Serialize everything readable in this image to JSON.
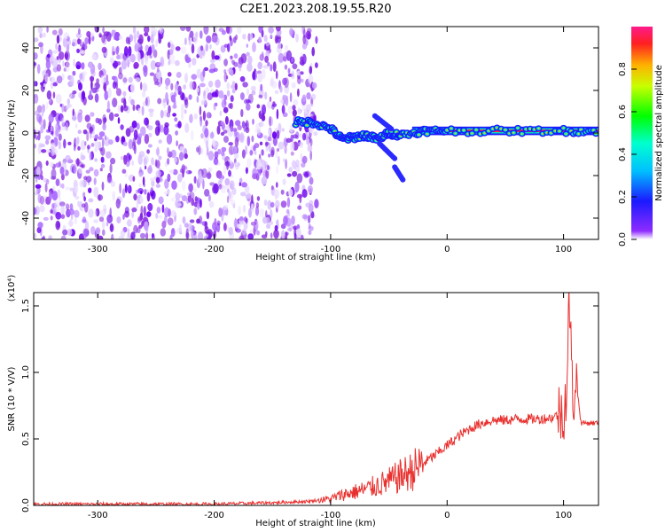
{
  "title": "C2E1.2023.208.19.55.R20",
  "colors": {
    "snr_line": "#e8312f",
    "background": "#ffffff",
    "axes": "#000000",
    "spectrogram_noise": "#7a1fe0"
  },
  "chart_data": [
    {
      "type": "heatmap",
      "xlabel": "Height of straight line (km)",
      "ylabel": "Frequency (Hz)",
      "xlim": [
        -355,
        130
      ],
      "ylim": [
        -50,
        50
      ],
      "xticks": [
        -300,
        -200,
        -100,
        0,
        100
      ],
      "yticks": [
        -40,
        -20,
        0,
        20,
        40
      ],
      "colorbar": {
        "label": "Normalized spectral amplitude",
        "range": [
          0,
          1
        ],
        "ticks": [
          "0.0",
          "0.2",
          "0.4",
          "0.6",
          "0.8"
        ]
      },
      "signal_track": [
        {
          "x": -130,
          "y": 5
        },
        {
          "x": -115,
          "y": 5
        },
        {
          "x": -100,
          "y": 2
        },
        {
          "x": -90,
          "y": -3
        },
        {
          "x": -80,
          "y": -2
        },
        {
          "x": -70,
          "y": -1
        },
        {
          "x": -60,
          "y": -3
        },
        {
          "x": -50,
          "y": 0
        },
        {
          "x": -40,
          "y": -1
        },
        {
          "x": -20,
          "y": 1
        },
        {
          "x": 0,
          "y": 1
        },
        {
          "x": 50,
          "y": 1
        },
        {
          "x": 100,
          "y": 1
        },
        {
          "x": 130,
          "y": 1
        }
      ]
    },
    {
      "type": "line",
      "xlabel": "Height of straight line (km)",
      "ylabel": "SNR (10 * V/V)",
      "scale_note": "(x10⁴)",
      "xlim": [
        -355,
        130
      ],
      "ylim": [
        0,
        1.6
      ],
      "xticks": [
        -300,
        -200,
        -100,
        0,
        100
      ],
      "yticks": [
        "0.0",
        "0.5",
        "1.0",
        "1.5"
      ],
      "series": [
        {
          "x": [
            -355,
            -300,
            -250,
            -200,
            -150,
            -120,
            -100,
            -90,
            -80,
            -70,
            -60,
            -50,
            -40,
            -30,
            -20,
            -10,
            0,
            10,
            20,
            30,
            40,
            50,
            60,
            70,
            80,
            90,
            95,
            100,
            103,
            105,
            108,
            110,
            115,
            120,
            130
          ],
          "y": [
            0.01,
            0.01,
            0.01,
            0.01,
            0.02,
            0.03,
            0.05,
            0.08,
            0.1,
            0.12,
            0.15,
            0.18,
            0.22,
            0.26,
            0.32,
            0.38,
            0.45,
            0.52,
            0.58,
            0.62,
            0.64,
            0.64,
            0.65,
            0.65,
            0.65,
            0.66,
            0.68,
            0.72,
            0.9,
            1.6,
            0.7,
            1.0,
            0.62,
            0.62,
            0.62
          ]
        }
      ]
    }
  ]
}
